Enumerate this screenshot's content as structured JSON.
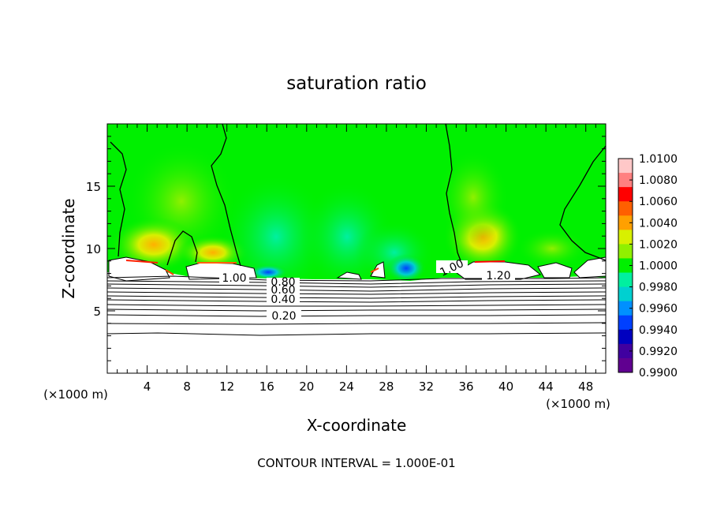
{
  "chart_data": {
    "type": "heatmap",
    "title": "saturation ratio",
    "xlabel": "X-coordinate",
    "ylabel": "Z-coordinate",
    "x_unit": "(×1000 m)",
    "z_unit": "(×1000 m)",
    "xlim": [
      0,
      50
    ],
    "ylim": [
      0,
      20
    ],
    "x_ticks": [
      "4",
      "8",
      "12",
      "16",
      "20",
      "24",
      "28",
      "32",
      "36",
      "40",
      "44",
      "48"
    ],
    "y_ticks": [
      "5",
      "10",
      "15"
    ],
    "colorbar": {
      "labels": [
        "1.0100",
        "1.0080",
        "1.0060",
        "1.0040",
        "1.0020",
        "1.0000",
        "0.9980",
        "0.9960",
        "0.9940",
        "0.9920",
        "0.9900"
      ],
      "colors": [
        "#ffc8c8",
        "#ff8080",
        "#ff0000",
        "#ff6000",
        "#ffa000",
        "#d8f000",
        "#90f000",
        "#00f000",
        "#00f0a0",
        "#00d0d0",
        "#0090ff",
        "#0040ff",
        "#0000c0",
        "#4000a0",
        "#600090"
      ]
    },
    "contour_labels": [
      "1.00",
      "0.80",
      "0.60",
      "0.40",
      "0.20",
      "1.00",
      "1.20"
    ],
    "footer": "CONTOUR INTERVAL = 1.000E-01",
    "colors": {
      "field": "#00f000",
      "low_band": "#ffffff",
      "contour": "#000000"
    }
  }
}
